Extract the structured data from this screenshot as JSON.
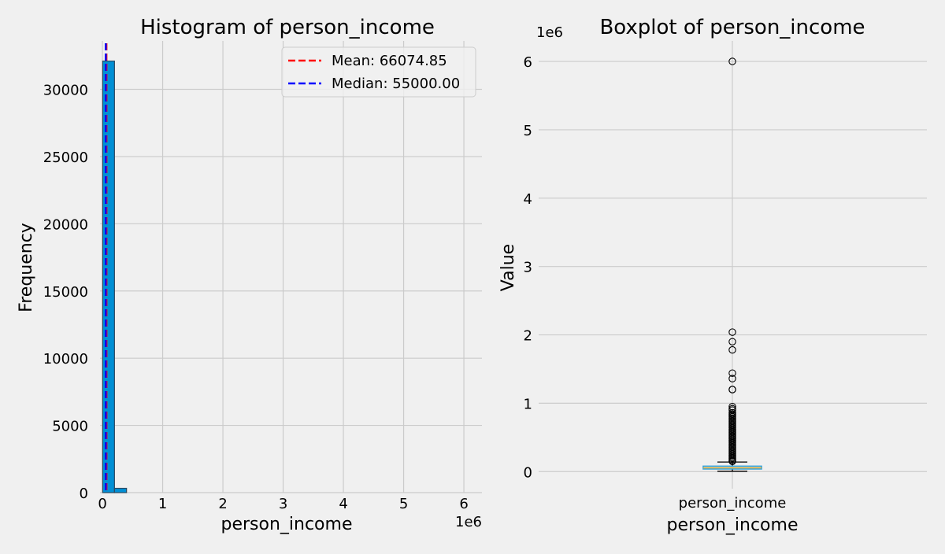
{
  "chart_data": [
    {
      "type": "bar",
      "title": "Histogram of person_income",
      "xlabel": "person_income",
      "ylabel": "Frequency",
      "x_offset_text": "1e6",
      "xlim": [
        -0.04,
        6.3
      ],
      "ylim": [
        0,
        33600
      ],
      "x_ticks": [
        0,
        1,
        2,
        3,
        4,
        5,
        6
      ],
      "y_ticks": [
        0,
        5000,
        10000,
        15000,
        20000,
        25000,
        30000
      ],
      "bins": [
        {
          "start": 0.004,
          "end": 0.2,
          "count": 32100
        },
        {
          "start": 0.2,
          "end": 0.4,
          "count": 320
        }
      ],
      "lines": [
        {
          "label": "Mean: 66074.85",
          "x": 0.0661,
          "color": "#ff0000"
        },
        {
          "label": "Median: 55000.00",
          "x": 0.055,
          "color": "#0000ff"
        }
      ],
      "bar_color": "#008fd5",
      "grid": true,
      "legend_position": "top-right"
    },
    {
      "type": "box",
      "title": "Boxplot of person_income",
      "xlabel": "person_income",
      "ylabel": "Value",
      "category": "person_income",
      "y_offset_text": "1e6",
      "ylim": [
        -0.25,
        6.3
      ],
      "y_ticks": [
        0,
        1,
        2,
        3,
        4,
        5,
        6
      ],
      "box": {
        "whisker_low": 0.004,
        "q1": 0.0385,
        "median": 0.055,
        "q3": 0.0792,
        "whisker_high": 0.14
      },
      "outliers": [
        6.0,
        2.04,
        1.9,
        1.78,
        1.44,
        1.36,
        1.2,
        1.2,
        0.95,
        0.92,
        0.9,
        0.86,
        0.84,
        0.82,
        0.8,
        0.78,
        0.76,
        0.74,
        0.72,
        0.7,
        0.68,
        0.66,
        0.64,
        0.62,
        0.6,
        0.58,
        0.56,
        0.54,
        0.52,
        0.5,
        0.48,
        0.46,
        0.44,
        0.42,
        0.4,
        0.38,
        0.36,
        0.34,
        0.32,
        0.3,
        0.28,
        0.26,
        0.24,
        0.22,
        0.2,
        0.18,
        0.16,
        0.15
      ],
      "box_color": "#30a2da",
      "median_color": "#e5ae38",
      "grid": true
    }
  ]
}
